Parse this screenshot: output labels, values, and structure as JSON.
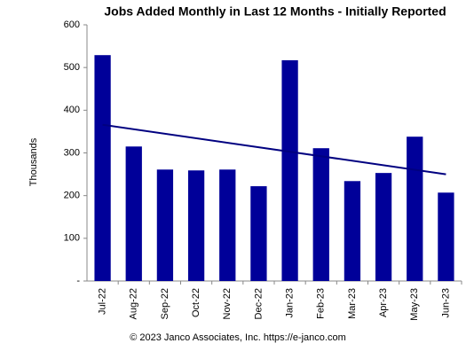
{
  "chart_data": {
    "type": "bar",
    "title": "Jobs Added Monthly in Last 12 Months - Initially Reported",
    "y_label": "Thousands",
    "footer": "© 2023 Janco Associates, Inc.  https://e-janco.com",
    "categories": [
      "Jul-22",
      "Aug-22",
      "Sep-22",
      "Oct-22",
      "Nov-22",
      "Dec-22",
      "Jan-23",
      "Feb-23",
      "Mar-23",
      "Apr-23",
      "May-23",
      "Jun-23"
    ],
    "values": [
      529,
      315,
      261,
      259,
      261,
      222,
      517,
      311,
      234,
      253,
      338,
      207
    ],
    "color": "#000099",
    "trend": {
      "start": 366,
      "end": 250,
      "color": "#000080"
    },
    "ylim": [
      0,
      600
    ],
    "yticks": [
      {
        "value": 0,
        "label": "-"
      },
      100,
      200,
      300,
      400,
      500,
      600
    ]
  }
}
